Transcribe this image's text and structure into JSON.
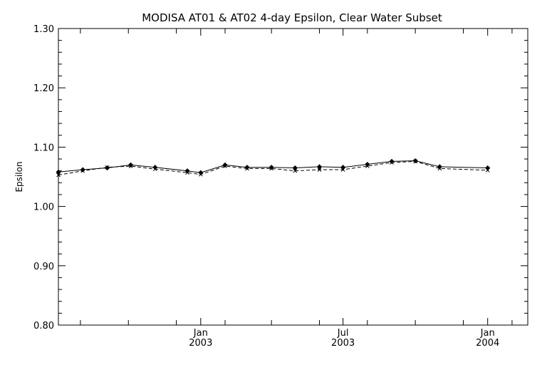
{
  "chart_data": {
    "type": "line",
    "title": "MODISA AT01 & AT02 4-day Epsilon, Clear Water Subset",
    "xlabel": "",
    "ylabel": "Epsilon",
    "ylim": [
      0.8,
      1.3
    ],
    "xlim": [
      "2002-07-04",
      "2004-02-21"
    ],
    "grid": false,
    "legend": "none",
    "y_ticks": [
      "0.80",
      "0.90",
      "1.00",
      "1.10",
      "1.20",
      "1.30"
    ],
    "x_ticks": [
      {
        "date": "2003-01-01",
        "month": "Jan",
        "year": "2003"
      },
      {
        "date": "2003-07-01",
        "month": "Jul",
        "year": "2003"
      },
      {
        "date": "2004-01-01",
        "month": "Jan",
        "year": "2004"
      }
    ],
    "series": [
      {
        "line_style": "solid",
        "points": [
          {
            "x": "2002-07-04",
            "y": 1.058
          },
          {
            "x": "2002-08-04",
            "y": 1.062
          },
          {
            "x": "2002-09-04",
            "y": 1.065
          },
          {
            "x": "2002-10-04",
            "y": 1.07
          },
          {
            "x": "2002-11-04",
            "y": 1.066
          },
          {
            "x": "2002-12-15",
            "y": 1.06
          },
          {
            "x": "2003-01-01",
            "y": 1.057
          },
          {
            "x": "2003-02-01",
            "y": 1.07
          },
          {
            "x": "2003-03-01",
            "y": 1.066
          },
          {
            "x": "2003-04-01",
            "y": 1.066
          },
          {
            "x": "2003-05-01",
            "y": 1.065
          },
          {
            "x": "2003-06-01",
            "y": 1.067
          },
          {
            "x": "2003-07-01",
            "y": 1.066
          },
          {
            "x": "2003-08-01",
            "y": 1.071
          },
          {
            "x": "2003-09-01",
            "y": 1.076
          },
          {
            "x": "2003-10-01",
            "y": 1.077
          },
          {
            "x": "2003-11-01",
            "y": 1.067
          },
          {
            "x": "2004-01-01",
            "y": 1.065
          }
        ]
      },
      {
        "line_style": "dashed",
        "points": [
          {
            "x": "2002-07-04",
            "y": 1.053
          },
          {
            "x": "2002-08-04",
            "y": 1.06
          },
          {
            "x": "2002-09-04",
            "y": 1.066
          },
          {
            "x": "2002-10-04",
            "y": 1.068
          },
          {
            "x": "2002-11-04",
            "y": 1.063
          },
          {
            "x": "2002-12-15",
            "y": 1.057
          },
          {
            "x": "2003-01-01",
            "y": 1.054
          },
          {
            "x": "2003-02-01",
            "y": 1.068
          },
          {
            "x": "2003-03-01",
            "y": 1.064
          },
          {
            "x": "2003-04-01",
            "y": 1.064
          },
          {
            "x": "2003-05-01",
            "y": 1.06
          },
          {
            "x": "2003-06-01",
            "y": 1.062
          },
          {
            "x": "2003-07-01",
            "y": 1.062
          },
          {
            "x": "2003-08-01",
            "y": 1.068
          },
          {
            "x": "2003-09-01",
            "y": 1.074
          },
          {
            "x": "2003-10-01",
            "y": 1.076
          },
          {
            "x": "2003-11-01",
            "y": 1.064
          },
          {
            "x": "2004-01-01",
            "y": 1.061
          }
        ]
      }
    ]
  }
}
